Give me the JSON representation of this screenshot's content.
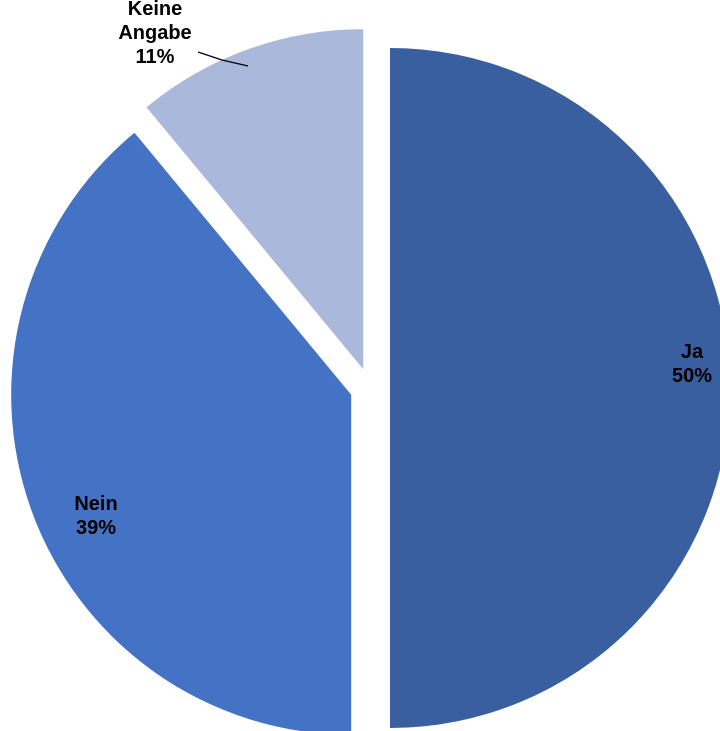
{
  "chart_data": {
    "type": "pie",
    "slices": [
      {
        "label": "Ja",
        "value": 50,
        "display": "50%",
        "color": "#3a5fa0"
      },
      {
        "label": "Nein",
        "value": 39,
        "display": "39%",
        "color": "#4472c4"
      },
      {
        "label": "Keine Angabe",
        "value": 11,
        "display": "11%",
        "color": "#a9b8db"
      }
    ],
    "start_angle_deg": 0,
    "direction": "clockwise",
    "exploded": true,
    "title": "",
    "legend": "none"
  }
}
